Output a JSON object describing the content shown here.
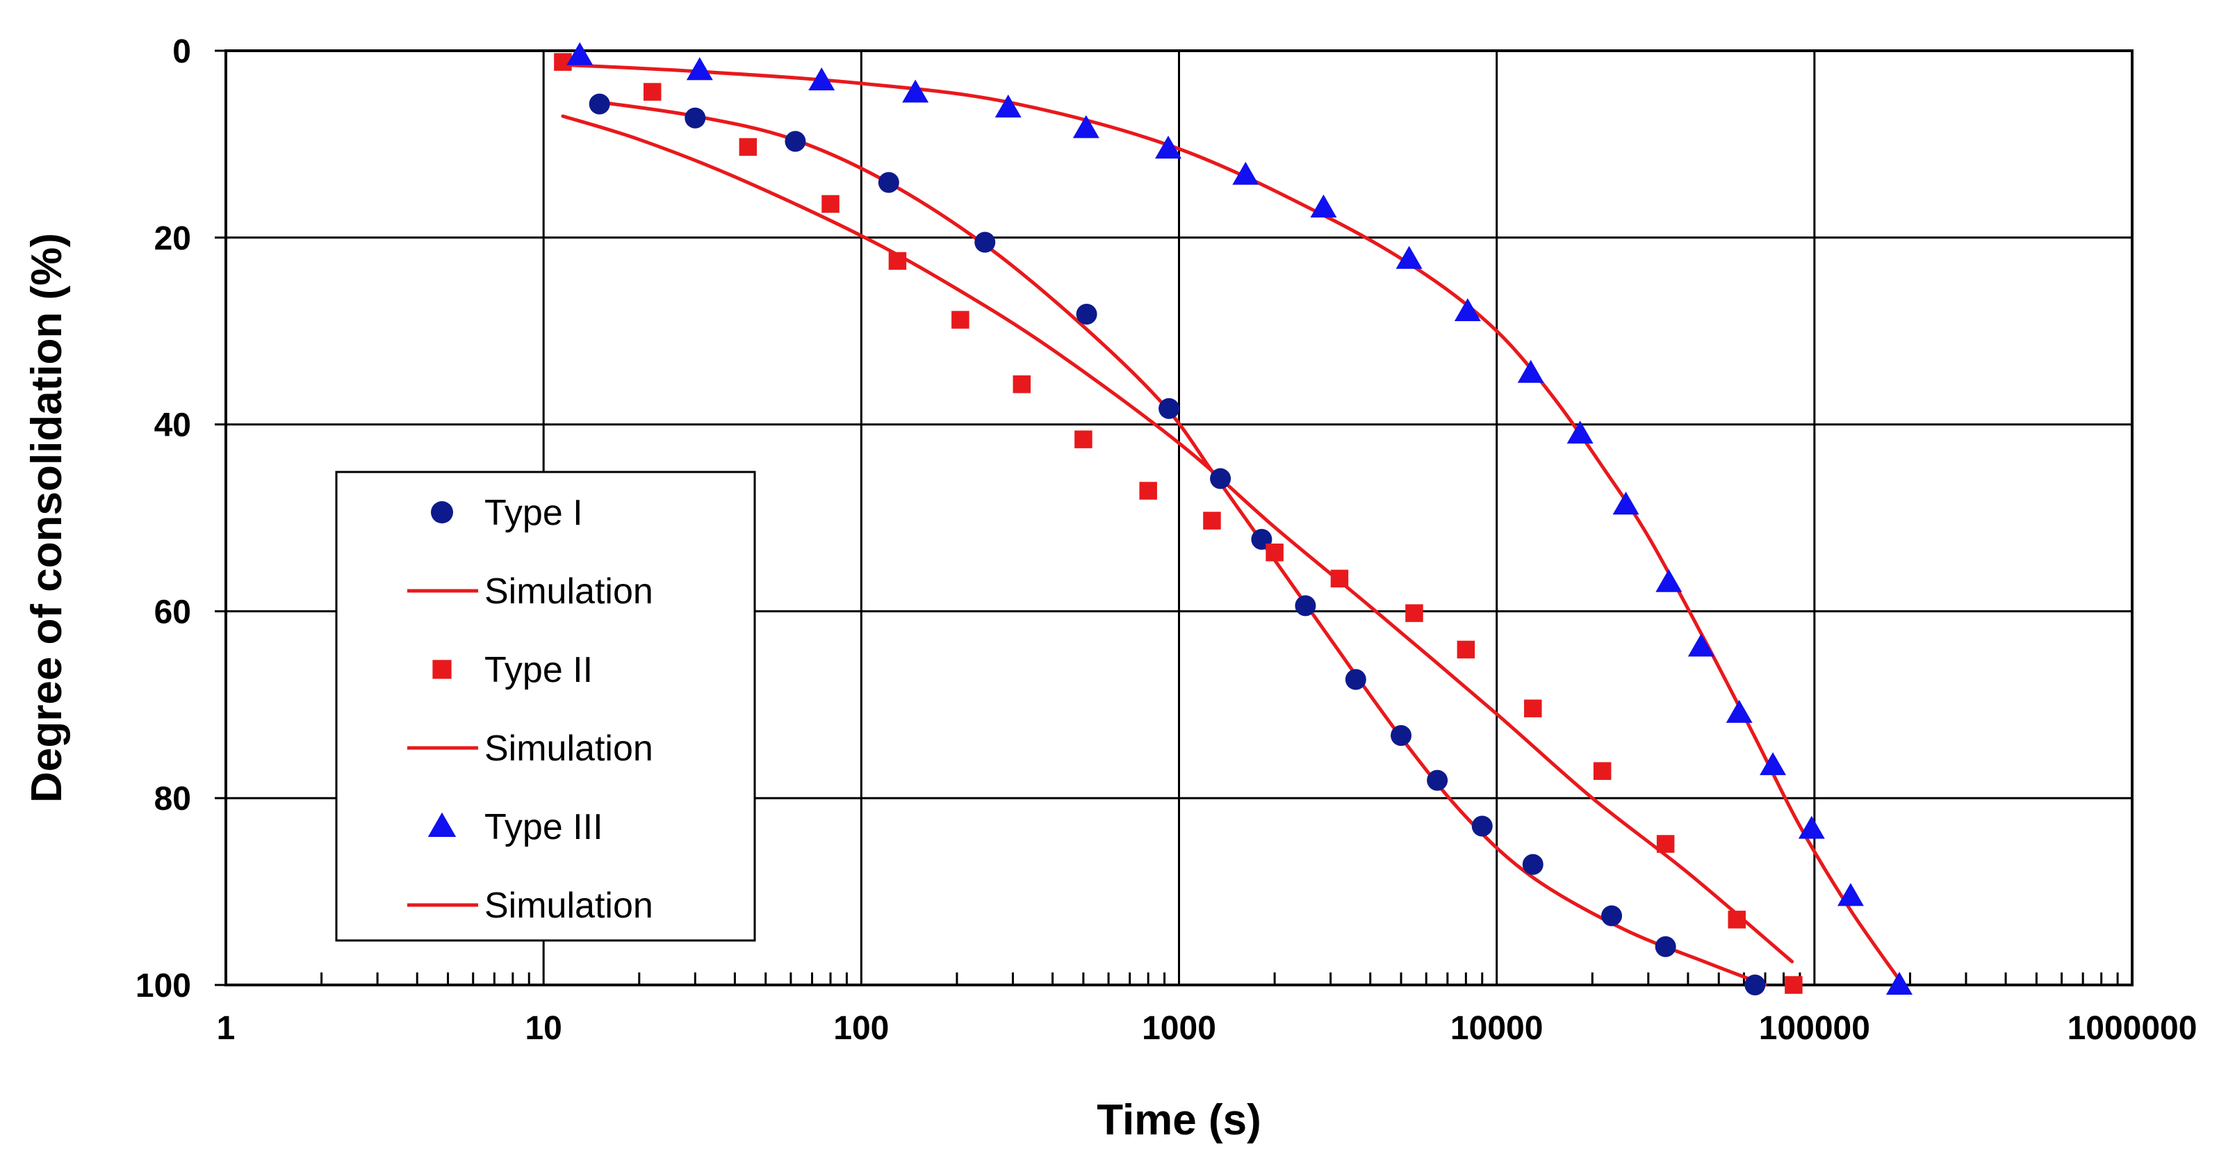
{
  "chart_data": {
    "type": "scatter",
    "title": "",
    "xlabel": "Time (s)",
    "ylabel": "Degree of consolidation (%)",
    "xscale": "log",
    "xlim": [
      1,
      1000000
    ],
    "ylim": [
      0,
      100
    ],
    "y_inverted": true,
    "grid": true,
    "legend_position": "middle-left",
    "x_ticks": [
      {
        "value": 1,
        "label": "1"
      },
      {
        "value": 10,
        "label": "10"
      },
      {
        "value": 100,
        "label": "100"
      },
      {
        "value": 1000,
        "label": "1000"
      },
      {
        "value": 10000,
        "label": "10000"
      },
      {
        "value": 100000,
        "label": "100000"
      },
      {
        "value": 1000000,
        "label": "1000000"
      }
    ],
    "y_ticks": [
      {
        "value": 0,
        "label": "0"
      },
      {
        "value": 20,
        "label": "20"
      },
      {
        "value": 40,
        "label": "40"
      },
      {
        "value": 60,
        "label": "60"
      },
      {
        "value": 80,
        "label": "80"
      },
      {
        "value": 100,
        "label": "100"
      }
    ],
    "legend": [
      {
        "label": "Type I",
        "kind": "marker",
        "marker": "circle",
        "color": "#0d1a8c"
      },
      {
        "label": "Simulation",
        "kind": "line",
        "color": "#e8191c"
      },
      {
        "label": "Type II",
        "kind": "marker",
        "marker": "square",
        "color": "#e8191c"
      },
      {
        "label": "Simulation",
        "kind": "line",
        "color": "#e8191c"
      },
      {
        "label": "Type III",
        "kind": "marker",
        "marker": "triangle",
        "color": "#1010f0"
      },
      {
        "label": "Simulation",
        "kind": "line",
        "color": "#e8191c"
      }
    ],
    "series": [
      {
        "name": "Type I",
        "kind": "scatter",
        "marker": "circle",
        "color": "#0d1a8c",
        "x": [
          15,
          30,
          62,
          122,
          245,
          512,
          930,
          1350,
          1820,
          2500,
          3600,
          5000,
          6500,
          9000,
          13000,
          23000,
          34000,
          65000
        ],
        "y": [
          5.7,
          7.2,
          9.7,
          14.1,
          20.5,
          28.2,
          38.3,
          45.8,
          52.3,
          59.4,
          67.3,
          73.3,
          78.1,
          83.0,
          87.1,
          92.6,
          95.9,
          100
        ]
      },
      {
        "name": "Simulation (Type I)",
        "kind": "line",
        "color": "#e8191c",
        "x": [
          15,
          30,
          60,
          120,
          250,
          500,
          900,
          1300,
          2000,
          3000,
          5000,
          8000,
          13000,
          25000,
          45000,
          70000
        ],
        "y": [
          5.5,
          7.0,
          9.4,
          14.0,
          21.0,
          29.5,
          38.0,
          45.5,
          54.5,
          63.0,
          73.5,
          82.0,
          88.5,
          94.0,
          97.5,
          100
        ]
      },
      {
        "name": "Type II",
        "kind": "scatter",
        "marker": "square",
        "color": "#e8191c",
        "x": [
          11.5,
          22,
          44,
          80,
          130,
          205,
          320,
          500,
          800,
          1270,
          2000,
          3200,
          5500,
          8000,
          13000,
          21500,
          34000,
          57000,
          86000
        ],
        "y": [
          1.2,
          4.4,
          10.3,
          16.4,
          22.5,
          28.8,
          35.7,
          41.6,
          47.1,
          50.3,
          53.7,
          56.5,
          60.2,
          64.1,
          70.4,
          77.1,
          84.9,
          93.0,
          100
        ]
      },
      {
        "name": "Simulation (Type II)",
        "kind": "line",
        "color": "#e8191c",
        "x": [
          11.5,
          20,
          40,
          100,
          200,
          400,
          1000,
          2000,
          4000,
          10000,
          20000,
          40000,
          85000
        ],
        "y": [
          7.0,
          9.5,
          13.5,
          19.8,
          25.5,
          32.0,
          42.0,
          51.0,
          59.5,
          71.0,
          80.0,
          88.0,
          97.5
        ]
      },
      {
        "name": "Type III",
        "kind": "scatter",
        "marker": "triangle",
        "color": "#1010f0",
        "x": [
          13,
          31,
          75,
          148,
          290,
          510,
          925,
          1620,
          2850,
          5300,
          8100,
          12800,
          18300,
          25500,
          34800,
          44000,
          58000,
          74000,
          98000,
          130000,
          185000
        ],
        "y": [
          0.5,
          2.1,
          3.2,
          4.5,
          6.1,
          8.3,
          10.5,
          13.3,
          16.8,
          22.3,
          27.9,
          34.5,
          41.0,
          48.6,
          56.9,
          63.8,
          70.9,
          76.5,
          83.3,
          90.5,
          100
        ]
      },
      {
        "name": "Simulation (Type III)",
        "kind": "line",
        "color": "#e8191c",
        "x": [
          11.5,
          30,
          100,
          300,
          1000,
          3000,
          6000,
          10000,
          15000,
          22000,
          30000,
          45000,
          65000,
          90000,
          130000,
          190000
        ],
        "y": [
          1.5,
          2.2,
          3.5,
          5.6,
          10.5,
          18.0,
          24.0,
          30.0,
          37.0,
          45.0,
          52.0,
          63.0,
          73.5,
          83.0,
          92.0,
          100
        ]
      }
    ]
  }
}
